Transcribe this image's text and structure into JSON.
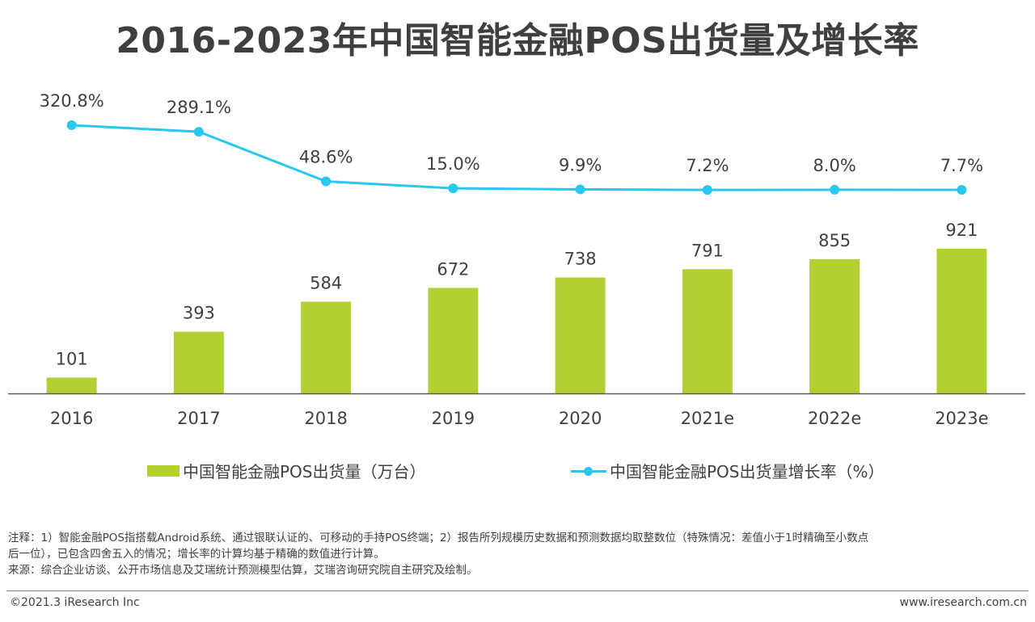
{
  "title": "2016-2023年中国智能金融POS出货量及增长率",
  "colors": {
    "bar": "#b1d133",
    "line": "#29c8f0",
    "axis": "#595959",
    "text": "#404040"
  },
  "legend": {
    "bar_label": "中国智能金融POS出货量（万台）",
    "line_label": "中国智能金融POS出货量增长率（%）"
  },
  "chart_data": {
    "type": "bar+line",
    "title": "2016-2023年中国智能金融POS出货量及增长率",
    "categories": [
      "2016",
      "2017",
      "2018",
      "2019",
      "2020",
      "2021e",
      "2022e",
      "2023e"
    ],
    "series": [
      {
        "name": "中国智能金融POS出货量（万台）",
        "type": "bar",
        "values": [
          101,
          393,
          584,
          672,
          738,
          791,
          855,
          921
        ],
        "labels": [
          "101",
          "393",
          "584",
          "672",
          "738",
          "791",
          "855",
          "921"
        ]
      },
      {
        "name": "中国智能金融POS出货量增长率（%）",
        "type": "line",
        "values": [
          320.8,
          289.1,
          48.6,
          15.0,
          9.9,
          7.2,
          8.0,
          7.7
        ],
        "labels": [
          "320.8%",
          "289.1%",
          "48.6%",
          "15.0%",
          "9.9%",
          "7.2%",
          "8.0%",
          "7.7%"
        ]
      }
    ],
    "legend_position": "bottom",
    "grid": false
  },
  "notes": {
    "line1": "注释：1）智能金融POS指搭载Android系统、通过银联认证的、可移动的手持POS终端；2）报告所列规模历史数据和预测数据均取整数位（特殊情况：差值小于1时精确至小数点",
    "line2": "后一位），已包含四舍五入的情况；增长率的计算均基于精确的数值进行计算。",
    "line3": "来源：综合企业访谈、公开市场信息及艾瑞统计预测模型估算，艾瑞咨询研究院自主研究及绘制。"
  },
  "footer": {
    "copyright": "©2021.3 iResearch Inc",
    "website": "www.iresearch.com.cn"
  }
}
